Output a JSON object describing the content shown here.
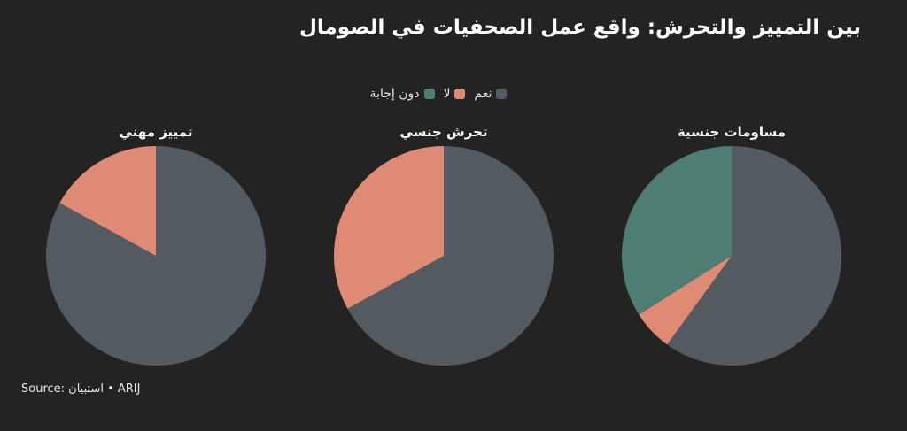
{
  "title": "بين التمييز والتحرش: واقع عمل الصحفيات في الصومال",
  "legend": [
    {
      "label": "نعم",
      "color": "#535a60"
    },
    {
      "label": "لا",
      "color": "#de8a75"
    },
    {
      "label": "دون إجابة",
      "color": "#4d7d73"
    }
  ],
  "source": "Source: استبيان • ARIJ",
  "chart_data": [
    {
      "type": "pie",
      "title": "مساومات جنسية",
      "slices": [
        {
          "label": "نعم",
          "value": 60,
          "color": "#535a60"
        },
        {
          "label": "لا",
          "value": 6,
          "color": "#de8a75"
        },
        {
          "label": "دون إجابة",
          "value": 34,
          "color": "#4d7d73"
        }
      ]
    },
    {
      "type": "pie",
      "title": "تحرش جنسي",
      "slices": [
        {
          "label": "نعم",
          "value": 67,
          "color": "#535a60"
        },
        {
          "label": "لا",
          "value": 33,
          "color": "#de8a75"
        }
      ]
    },
    {
      "type": "pie",
      "title": "تمييز مهني",
      "slices": [
        {
          "label": "نعم",
          "value": 83,
          "color": "#535a60"
        },
        {
          "label": "لا",
          "value": 17,
          "color": "#de8a75"
        }
      ]
    }
  ]
}
